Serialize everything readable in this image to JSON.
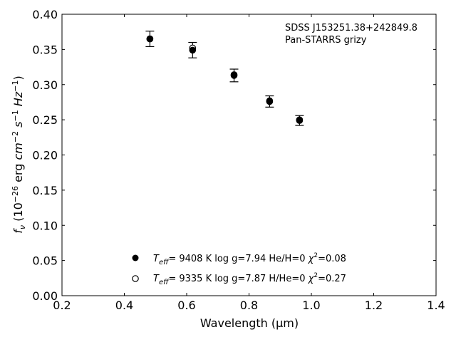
{
  "chart_data": {
    "type": "scatter",
    "title": "",
    "annotation": {
      "line1": "SDSS J153251.38+242849.8",
      "line2": "Pan-STARRS grizy"
    },
    "xlabel": "Wavelength (μm)",
    "ylabel": {
      "f": "f",
      "nu": "ν",
      "pre": " (10",
      "exp_m26": "−26",
      "erg": " erg ",
      "cm": "cm",
      "exp_m2": "−2",
      "s": " s",
      "exp_m1a": "−1",
      "hz": " Hz",
      "exp_m1b": "−1",
      "close": ")"
    },
    "xlim": [
      0.2,
      1.4
    ],
    "ylim": [
      0.0,
      0.4
    ],
    "xticks": [
      "0.2",
      "0.4",
      "0.6",
      "0.8",
      "1.0",
      "1.2",
      "1.4"
    ],
    "yticks": [
      "0.00",
      "0.05",
      "0.10",
      "0.15",
      "0.20",
      "0.25",
      "0.30",
      "0.35",
      "0.40"
    ],
    "grid": false,
    "legend_position": "bottom-center",
    "series": [
      {
        "marker": "filled-circle",
        "legend": {
          "T": "T",
          "sub": "eff",
          "rest1": "=  9408 K  log g=7.94  He/H=0  ",
          "chi": "χ",
          "sup": "2",
          "rest2": "=0.08"
        },
        "x": [
          0.482,
          0.619,
          0.752,
          0.866,
          0.962
        ],
        "y": [
          0.365,
          0.349,
          0.313,
          0.276,
          0.249
        ],
        "yerr": [
          0.011,
          0.011,
          0.009,
          0.008,
          0.007
        ]
      },
      {
        "marker": "open-circle",
        "legend": {
          "T": "T",
          "sub": "eff",
          "rest1": "=  9335 K  log g=7.87  H/He=0  ",
          "chi": "χ",
          "sup": "2",
          "rest2": "=0.27"
        },
        "x": [
          0.482,
          0.619,
          0.752,
          0.866,
          0.962
        ],
        "y": [
          0.365,
          0.352,
          0.314,
          0.277,
          0.25
        ]
      }
    ],
    "colors": {
      "marker": "#000000",
      "axis": "#000000",
      "background": "#ffffff"
    }
  }
}
